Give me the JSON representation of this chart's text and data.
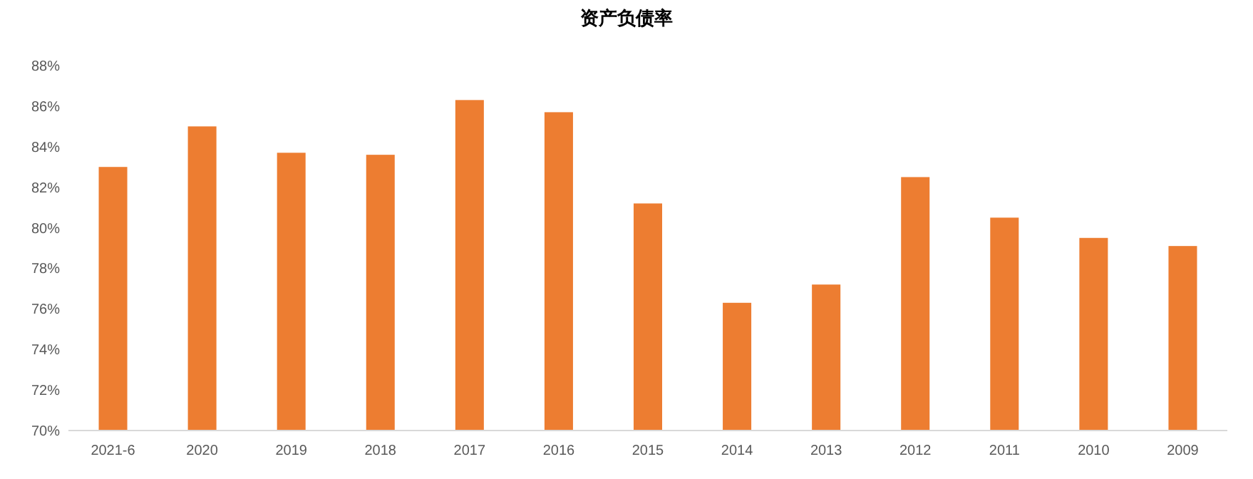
{
  "chart_data": {
    "type": "bar",
    "title": "资产负债率",
    "categories": [
      "2021-6",
      "2020",
      "2019",
      "2018",
      "2017",
      "2016",
      "2015",
      "2014",
      "2013",
      "2012",
      "2011",
      "2010",
      "2009"
    ],
    "values": [
      83.0,
      85.0,
      83.7,
      83.6,
      86.3,
      85.7,
      81.2,
      76.3,
      77.2,
      82.5,
      80.5,
      79.5,
      79.1
    ],
    "color": "#ed7d31",
    "ylim": [
      70,
      88
    ],
    "yticks": [
      {
        "value": 70,
        "label": "70%"
      },
      {
        "value": 72,
        "label": "72%"
      },
      {
        "value": 74,
        "label": "74%"
      },
      {
        "value": 76,
        "label": "76%"
      },
      {
        "value": 78,
        "label": "78%"
      },
      {
        "value": 80,
        "label": "80%"
      },
      {
        "value": 82,
        "label": "82%"
      },
      {
        "value": 84,
        "label": "84%"
      },
      {
        "value": 86,
        "label": "86%"
      },
      {
        "value": 88,
        "label": "88%"
      }
    ],
    "grid": false
  }
}
